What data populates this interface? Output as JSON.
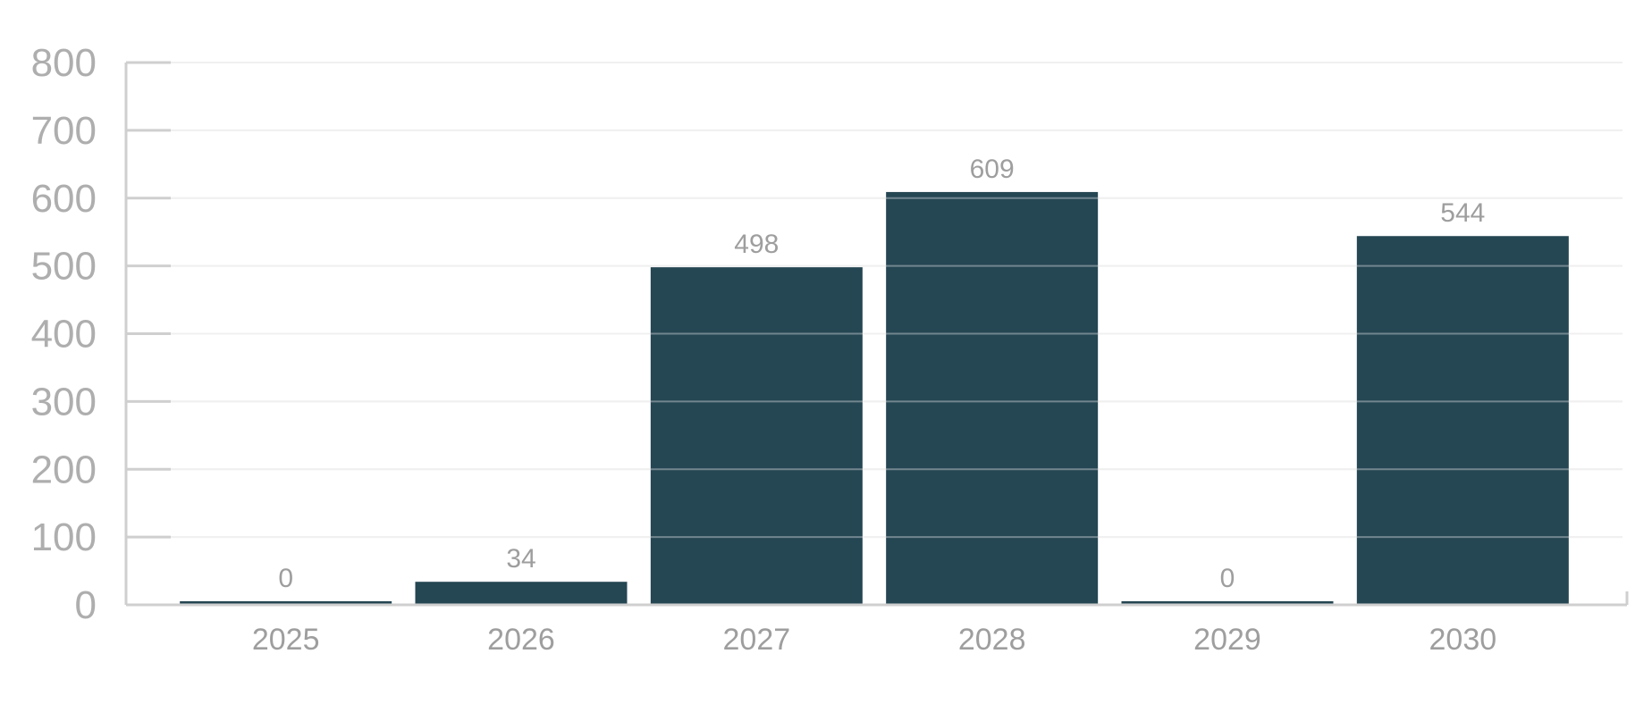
{
  "chart_data": {
    "type": "bar",
    "categories": [
      "2025",
      "2026",
      "2027",
      "2028",
      "2029",
      "2030"
    ],
    "values": [
      0,
      34,
      498,
      609,
      0,
      544
    ],
    "data_labels": [
      "0",
      "34",
      "498",
      "609",
      "0",
      "544"
    ],
    "title": "",
    "xlabel": "",
    "ylabel": "",
    "ylim": [
      0,
      800
    ],
    "yticks": [
      0,
      100,
      200,
      300,
      400,
      500,
      600,
      700,
      800
    ],
    "grid": true,
    "legend": "none",
    "colors": {
      "bar": "#254653",
      "grid": "#e8e8e8",
      "axis": "#cfcfcf",
      "text": "#9e9e9e"
    }
  }
}
